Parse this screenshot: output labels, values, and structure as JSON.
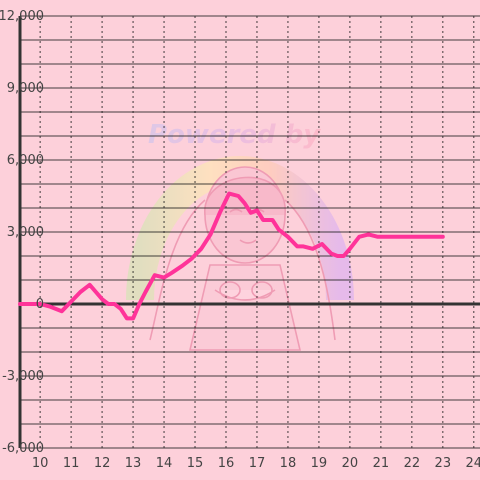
{
  "colors": {
    "background": "#fdd0da",
    "line": "#ff3399",
    "grid": "#222222",
    "axis": "#333333"
  },
  "watermark": {
    "text": "Powered by",
    "icon": "anime-girl-mascot-icon"
  },
  "chart_data": {
    "type": "line",
    "title": "",
    "xlabel": "",
    "ylabel": "",
    "xlim": [
      9.35,
      24.2
    ],
    "ylim": [
      -6000,
      12000
    ],
    "x_ticks": [
      10,
      11,
      12,
      13,
      14,
      15,
      16,
      17,
      18,
      19,
      20,
      21,
      22,
      23,
      24
    ],
    "x_tick_labels": [
      "10",
      "11",
      "12",
      "13",
      "14",
      "15",
      "16",
      "17",
      "18",
      "19",
      "20",
      "21",
      "22",
      "23",
      "24"
    ],
    "y_ticks": [
      -6000,
      -3000,
      0,
      3000,
      6000,
      9000,
      12000
    ],
    "y_tick_labels": [
      "-6,000",
      "-3,000",
      "0",
      "3,000",
      "6,000",
      "9,000",
      "12,000"
    ],
    "grid": true,
    "series": [
      {
        "x": [
          9.35,
          10.0,
          10.3,
          10.7,
          11.0,
          11.3,
          11.6,
          11.8,
          12.0,
          12.2,
          12.4,
          12.6,
          12.8,
          13.0,
          13.2,
          13.4,
          13.7,
          14.0,
          14.25,
          14.6,
          14.9,
          15.2,
          15.5,
          15.8,
          16.1,
          16.4,
          16.6,
          16.8,
          17.0,
          17.2,
          17.5,
          17.7,
          18.0,
          18.3,
          18.5,
          18.8,
          19.1,
          19.4,
          19.6,
          19.8,
          20.0,
          20.3,
          20.6,
          20.9,
          21.2,
          21.5,
          22.0,
          22.5,
          23.0
        ],
        "values": [
          0,
          0,
          -100,
          -300,
          100,
          500,
          800,
          500,
          200,
          0,
          0,
          -200,
          -600,
          -600,
          0,
          500,
          1200,
          1100,
          1300,
          1600,
          1900,
          2300,
          2900,
          3800,
          4600,
          4500,
          4200,
          3800,
          3900,
          3500,
          3500,
          3100,
          2800,
          2400,
          2400,
          2300,
          2500,
          2100,
          2000,
          2000,
          2300,
          2800,
          2900,
          2800,
          2800,
          2800,
          2800,
          2800,
          2800
        ]
      }
    ]
  }
}
